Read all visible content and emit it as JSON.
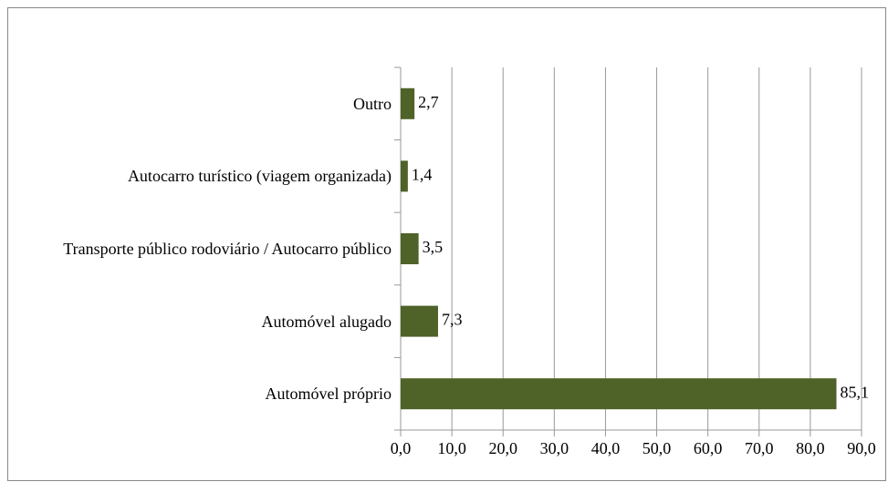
{
  "chart_data": {
    "type": "bar",
    "orientation": "horizontal",
    "categories": [
      "Outro",
      "Autocarro turístico (viagem organizada)",
      "Transporte público rodoviário / Autocarro público",
      "Automóvel alugado",
      "Automóvel próprio"
    ],
    "values": [
      2.7,
      1.4,
      3.5,
      7.3,
      85.1
    ],
    "value_labels": [
      "2,7",
      "1,4",
      "3,5",
      "7,3",
      "85,1"
    ],
    "color": "#4f6228",
    "xlim": [
      0,
      90
    ],
    "xticks": [
      {
        "value": 0,
        "label": "0,0"
      },
      {
        "value": 10,
        "label": "10,0"
      },
      {
        "value": 20,
        "label": "20,0"
      },
      {
        "value": 30,
        "label": "30,0"
      },
      {
        "value": 40,
        "label": "40,0"
      },
      {
        "value": 50,
        "label": "50,0"
      },
      {
        "value": 60,
        "label": "60,0"
      },
      {
        "value": 70,
        "label": "70,0"
      },
      {
        "value": 80,
        "label": "80,0"
      },
      {
        "value": 90,
        "label": "90,0"
      }
    ],
    "grid": true
  }
}
